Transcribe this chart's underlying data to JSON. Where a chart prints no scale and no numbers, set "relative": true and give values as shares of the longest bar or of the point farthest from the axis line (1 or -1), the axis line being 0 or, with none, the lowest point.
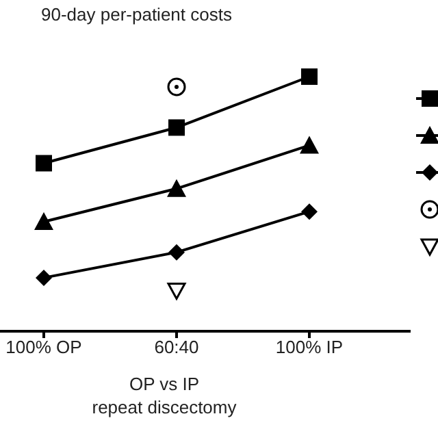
{
  "chart_data": {
    "type": "line",
    "title": "90-day per-patient costs",
    "xlabel": "OP vs IP\nrepeat discectomy",
    "categories": [
      "100% OP",
      "60:40",
      "100% IP"
    ],
    "relative": true,
    "series": [
      {
        "color": "#000000",
        "marker": "square",
        "values": [
          0.66,
          0.8,
          1
        ]
      },
      {
        "color": "#000000",
        "marker": "triangle",
        "values": [
          0.43,
          0.56,
          0.73
        ]
      },
      {
        "color": "#000000",
        "marker": "diamond",
        "values": [
          0.21,
          0.31,
          0.47
        ]
      },
      {
        "type": "scatter",
        "color": "#000000",
        "marker": "circle",
        "values": [
          null,
          0.96,
          null
        ]
      },
      {
        "type": "scatter",
        "color": "#000000",
        "marker": "triangle-down",
        "values": [
          null,
          0.16,
          null
        ]
      }
    ]
  }
}
